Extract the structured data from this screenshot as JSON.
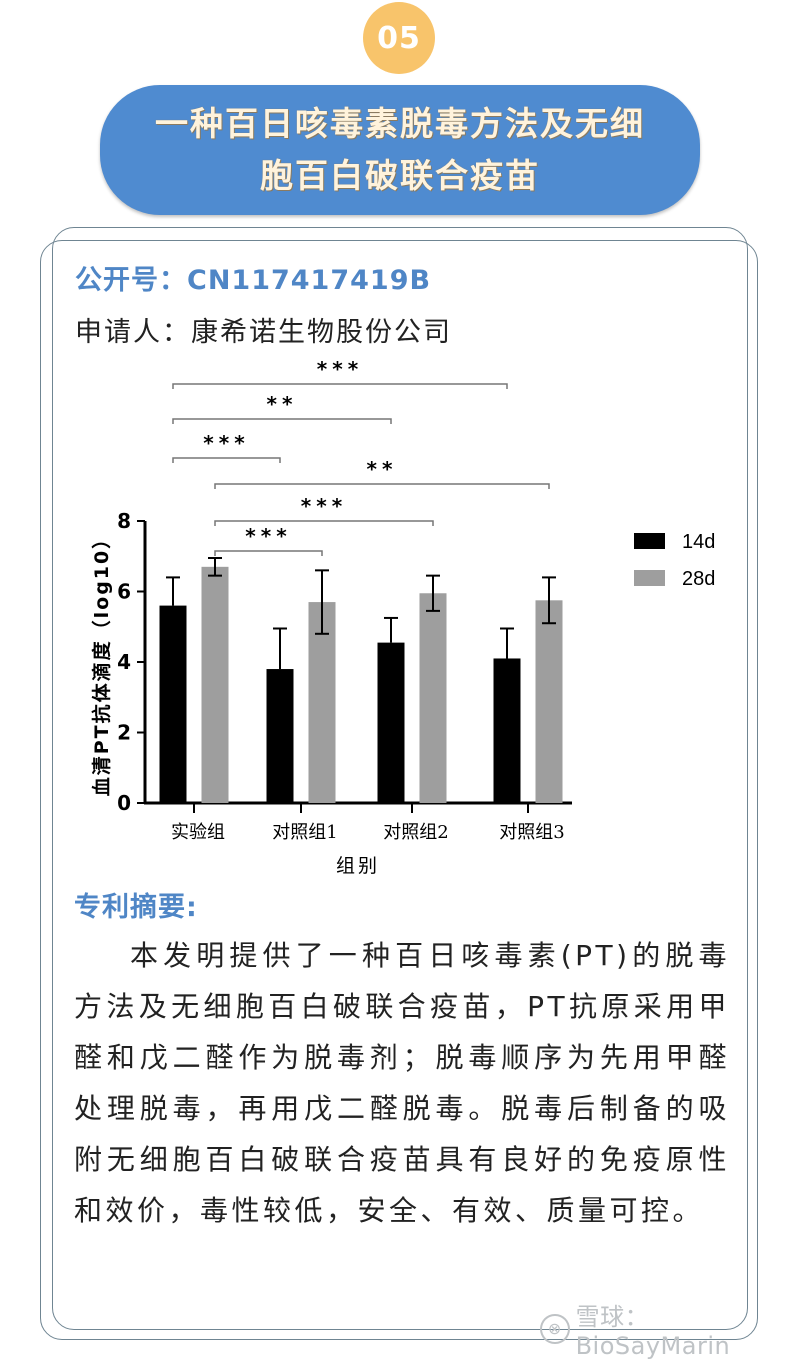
{
  "badge": {
    "number": "05",
    "color": "#F8C46B"
  },
  "title": {
    "line1": "一种百日咳毒素脱毒方法及无细",
    "line2": "胞百白破联合疫苗",
    "background": "#4F8BD0",
    "text_color": "#FFF3DC"
  },
  "publication": {
    "label": "公开号：",
    "number": "CN117417419B",
    "color": "#4F86C6"
  },
  "applicant": {
    "label": "申请人：",
    "name": "康希诺生物股份公司"
  },
  "abstract": {
    "heading": "专利摘要:",
    "text": "本发明提供了一种百日咳毒素(PT)的脱毒方法及无细胞百白破联合疫苗，PT抗原采用甲醛和戊二醛作为脱毒剂；脱毒顺序为先用甲醛处理脱毒，再用戊二醛脱毒。脱毒后制备的吸附无细胞百白破联合疫苗具有良好的免疫原性和效价，毒性较低，安全、有效、质量可控。"
  },
  "watermark": {
    "icon": "xueqiu-logo-icon",
    "text": "雪球：BioSayMarin"
  },
  "chart_data": {
    "type": "bar",
    "title": "",
    "xlabel": "组别",
    "ylabel": "血清PT抗体滴度（log10）",
    "ylim": [
      0,
      8
    ],
    "yticks": [
      0,
      2,
      4,
      6,
      8
    ],
    "grid": false,
    "legend_position": "right",
    "categories": [
      "实验组",
      "对照组1",
      "对照组2",
      "对照组3"
    ],
    "series": [
      {
        "name": "14d",
        "color": "#000000",
        "values": [
          5.6,
          3.8,
          4.55,
          4.1
        ],
        "error": [
          0.8,
          1.15,
          0.7,
          0.85
        ]
      },
      {
        "name": "28d",
        "color": "#9E9E9E",
        "values": [
          6.7,
          5.7,
          5.95,
          5.75
        ],
        "error": [
          0.25,
          0.9,
          0.5,
          0.65
        ]
      }
    ],
    "significance": [
      {
        "from": "实验组 14d",
        "to": "对照组3 14d",
        "label": "***"
      },
      {
        "from": "实验组 14d",
        "to": "对照组2 14d",
        "label": "**"
      },
      {
        "from": "实验组 14d",
        "to": "对照组1 14d",
        "label": "***"
      },
      {
        "from": "实验组 28d",
        "to": "对照组3 28d",
        "label": "**"
      },
      {
        "from": "实验组 28d",
        "to": "对照组2 28d",
        "label": "***"
      },
      {
        "from": "实验组 28d",
        "to": "对照组1 28d",
        "label": "***"
      }
    ]
  }
}
